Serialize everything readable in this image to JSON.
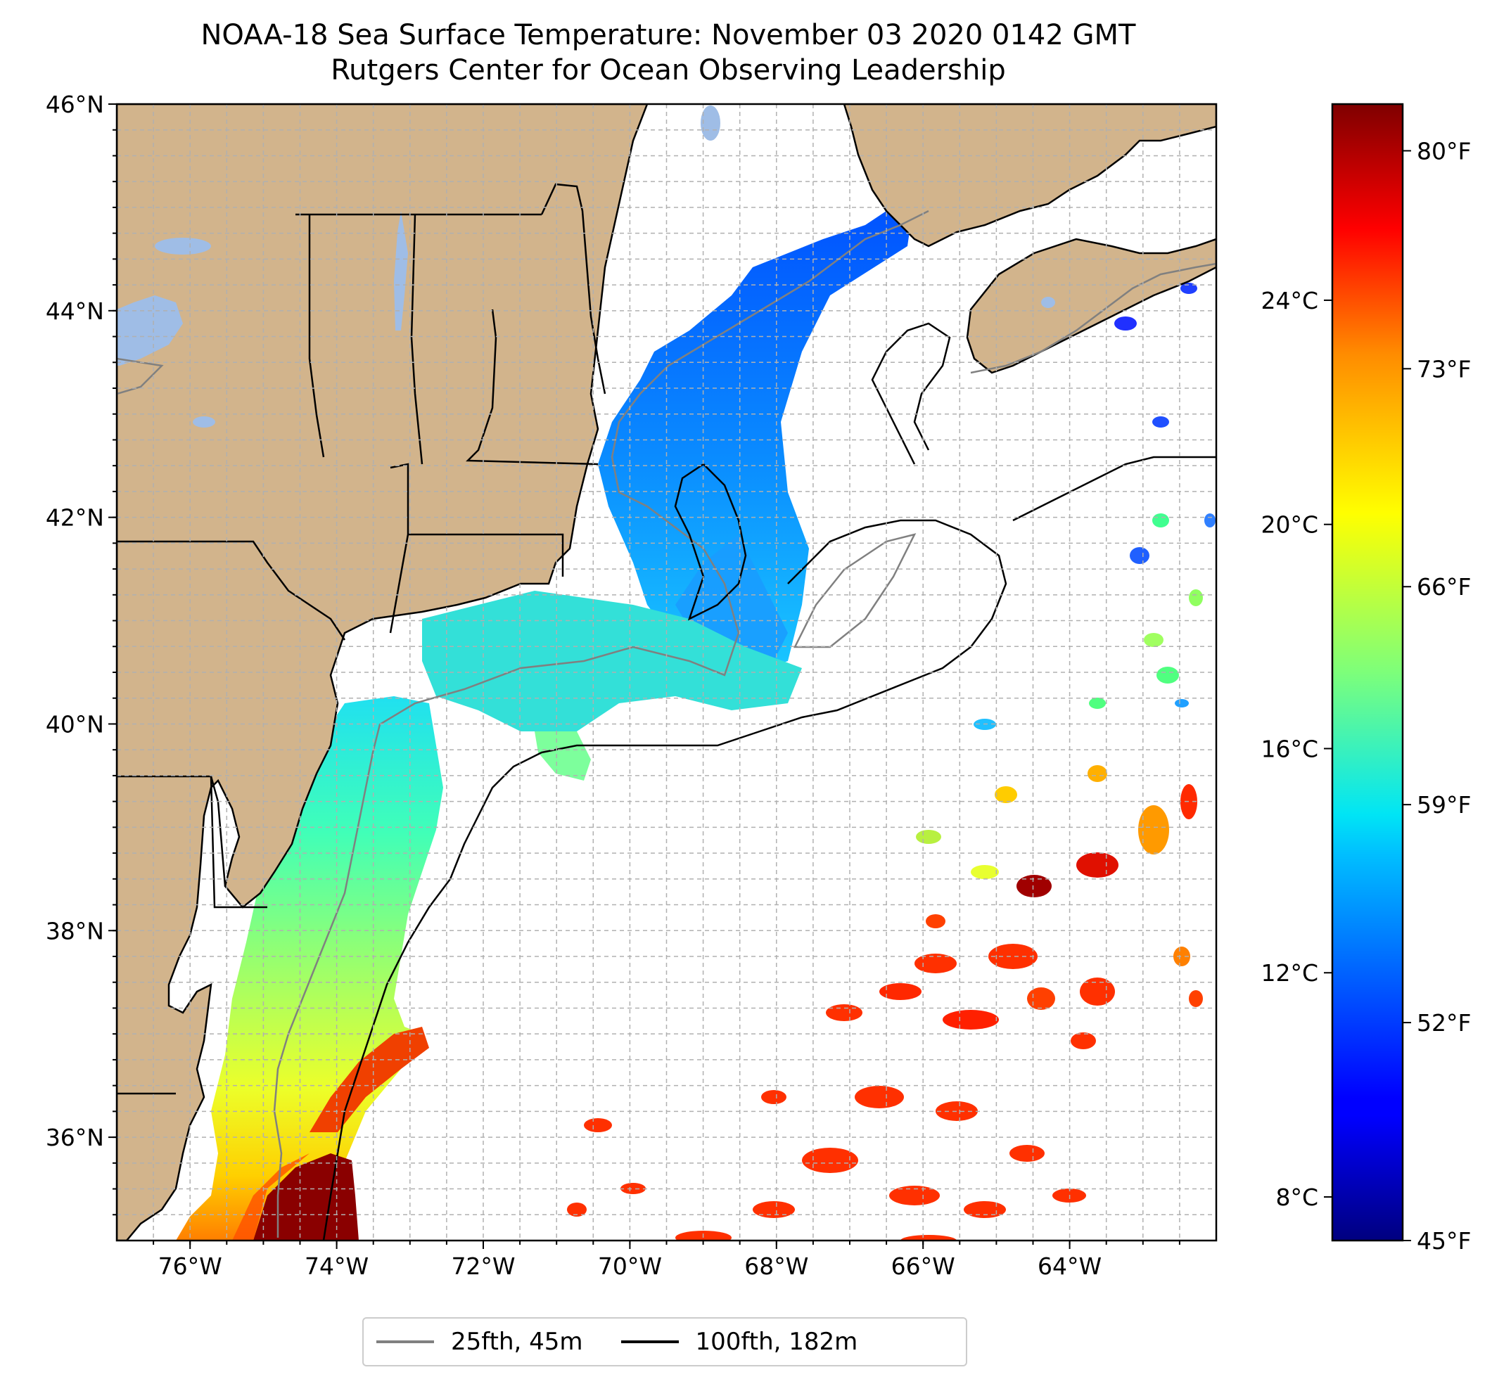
{
  "title": {
    "line1": "NOAA-18 Sea Surface Temperature: November 03 2020 0142 GMT",
    "line2": "Rutgers Center for Ocean Observing Leadership"
  },
  "map": {
    "lon_range": [
      -77.0,
      -62.0
    ],
    "lat_range": [
      35.0,
      46.0
    ],
    "lat_ticks": [
      {
        "value": 46,
        "label": "46°N"
      },
      {
        "value": 44,
        "label": "44°N"
      },
      {
        "value": 42,
        "label": "42°N"
      },
      {
        "value": 40,
        "label": "40°N"
      },
      {
        "value": 38,
        "label": "38°N"
      },
      {
        "value": 36,
        "label": "36°N"
      }
    ],
    "lon_ticks": [
      {
        "value": -76,
        "label": "76°W"
      },
      {
        "value": -74,
        "label": "74°W"
      },
      {
        "value": -72,
        "label": "72°W"
      },
      {
        "value": -70,
        "label": "70°W"
      },
      {
        "value": -68,
        "label": "68°W"
      },
      {
        "value": -66,
        "label": "66°W"
      },
      {
        "value": -64,
        "label": "64°W"
      }
    ],
    "colors": {
      "land": "#d2b48c",
      "lakes": "#9fbde6",
      "isobath_25": "#808080",
      "isobath_100": "#000000",
      "grid": "#b0b0b0"
    }
  },
  "colorbar": {
    "celsius_ticks": [
      {
        "value": 24,
        "label": "24°C"
      },
      {
        "value": 20,
        "label": "20°C"
      },
      {
        "value": 16,
        "label": "16°C"
      },
      {
        "value": 12,
        "label": "12°C"
      },
      {
        "value": 8,
        "label": "8°C"
      }
    ],
    "fahrenheit_ticks": [
      {
        "value": 80,
        "label": "80°F"
      },
      {
        "value": 73,
        "label": "73°F"
      },
      {
        "value": 66,
        "label": "66°F"
      },
      {
        "value": 59,
        "label": "59°F"
      },
      {
        "value": 52,
        "label": "52°F"
      },
      {
        "value": 45,
        "label": "45°F"
      }
    ],
    "range_f": [
      45,
      81.5
    ]
  },
  "legend": {
    "items": [
      {
        "label": "25fth, 45m",
        "color": "#808080"
      },
      {
        "label": "100fth, 182m",
        "color": "#000000"
      }
    ]
  }
}
